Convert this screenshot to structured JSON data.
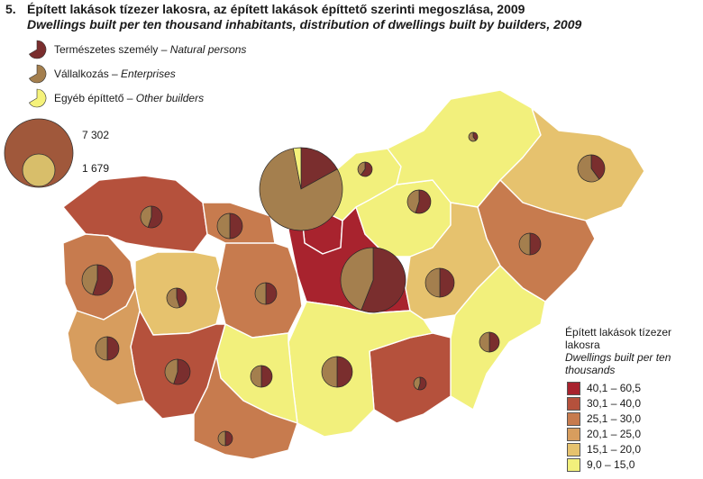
{
  "title": {
    "number": "5.",
    "hu": "Épített lakások tízezer lakosra, az épített lakások építtető szerinti megoszlása, 2009",
    "en": "Dwellings built per ten thousand inhabitants, distribution of dwellings built by builders, 2009"
  },
  "pie_legend": {
    "items": [
      {
        "hu": "Természetes személy – ",
        "en": "Natural persons",
        "color": "#7a2e2e"
      },
      {
        "hu": "Vállalkozás – ",
        "en": "Enterprises",
        "color": "#a47f4e"
      },
      {
        "hu": "Egyéb építtető – ",
        "en": "Other builders",
        "color": "#f5f27a"
      }
    ],
    "size_values": [
      "7 302",
      "1 679"
    ]
  },
  "choropleth_legend": {
    "title_hu": "Épített lakások tízezer lakosra",
    "title_en": "Dwellings built per ten thousands",
    "classes": [
      {
        "label": "40,1 – 60,5",
        "color": "#a8232e"
      },
      {
        "label": "30,1 – 40,0",
        "color": "#b5513c"
      },
      {
        "label": "25,1 – 30,0",
        "color": "#c77b4e"
      },
      {
        "label": "20,1 – 25,0",
        "color": "#d79d5e"
      },
      {
        "label": "15,1 – 20,0",
        "color": "#e6c26e"
      },
      {
        "label": "9,0 – 15,0",
        "color": "#f2f07c"
      }
    ]
  },
  "colors": {
    "natural": "#7a2e2e",
    "enterprise": "#a47f4e",
    "other": "#f5f27a",
    "border": "#ffffff"
  },
  "regions": [
    {
      "name": "Győr-Moson-Sopron",
      "class": 1
    },
    {
      "name": "Komárom-Esztergom",
      "class": 2
    },
    {
      "name": "Vas",
      "class": 2
    },
    {
      "name": "Veszprém",
      "class": 4
    },
    {
      "name": "Fejér",
      "class": 2
    },
    {
      "name": "Budapest",
      "class": 0
    },
    {
      "name": "Pest",
      "class": 0
    },
    {
      "name": "Nógrád",
      "class": 5
    },
    {
      "name": "Heves",
      "class": 5
    },
    {
      "name": "Borsod-Abaúj-Zemplén",
      "class": 5
    },
    {
      "name": "Szabolcs-Szatmár-Bereg",
      "class": 4
    },
    {
      "name": "Hajdú-Bihar",
      "class": 2
    },
    {
      "name": "Jász-Nagykun-Szolnok",
      "class": 4
    },
    {
      "name": "Békés",
      "class": 5
    },
    {
      "name": "Csongrád",
      "class": 1
    },
    {
      "name": "Bács-Kiskun",
      "class": 5
    },
    {
      "name": "Tolna",
      "class": 5
    },
    {
      "name": "Baranya",
      "class": 2
    },
    {
      "name": "Somogy",
      "class": 1
    },
    {
      "name": "Zala",
      "class": 3
    }
  ],
  "pies": [
    {
      "region": "Győr-Moson-Sopron",
      "shares": [
        0.55,
        0.45,
        0
      ]
    },
    {
      "region": "Komárom-Esztergom",
      "shares": [
        0.5,
        0.5,
        0
      ]
    },
    {
      "region": "Vas",
      "shares": [
        0.55,
        0.45,
        0
      ]
    },
    {
      "region": "Veszprém",
      "shares": [
        0.45,
        0.55,
        0
      ]
    },
    {
      "region": "Fejér",
      "shares": [
        0.5,
        0.5,
        0
      ]
    },
    {
      "region": "Budapest",
      "shares": [
        0.17,
        0.8,
        0.03
      ]
    },
    {
      "region": "Pest",
      "shares": [
        0.56,
        0.44,
        0
      ]
    },
    {
      "region": "Nógrád",
      "shares": [
        0.6,
        0.4,
        0
      ]
    },
    {
      "region": "Heves",
      "shares": [
        0.55,
        0.45,
        0
      ]
    },
    {
      "region": "Borsod-Abaúj-Zemplén",
      "shares": [
        0.4,
        0.6,
        0
      ]
    },
    {
      "region": "Szabolcs-Szatmár-Bereg",
      "shares": [
        0.4,
        0.6,
        0
      ]
    },
    {
      "region": "Hajdú-Bihar",
      "shares": [
        0.5,
        0.5,
        0
      ]
    },
    {
      "region": "Jász-Nagykun-Szolnok",
      "shares": [
        0.5,
        0.5,
        0
      ]
    },
    {
      "region": "Békés",
      "shares": [
        0.5,
        0.5,
        0
      ]
    },
    {
      "region": "Csongrád",
      "shares": [
        0.55,
        0.45,
        0
      ]
    },
    {
      "region": "Bács-Kiskun",
      "shares": [
        0.5,
        0.5,
        0
      ]
    },
    {
      "region": "Tolna",
      "shares": [
        0.5,
        0.5,
        0
      ]
    },
    {
      "region": "Baranya",
      "shares": [
        0.5,
        0.5,
        0
      ]
    },
    {
      "region": "Somogy",
      "shares": [
        0.55,
        0.45,
        0
      ]
    },
    {
      "region": "Zala",
      "shares": [
        0.5,
        0.5,
        0
      ]
    }
  ]
}
